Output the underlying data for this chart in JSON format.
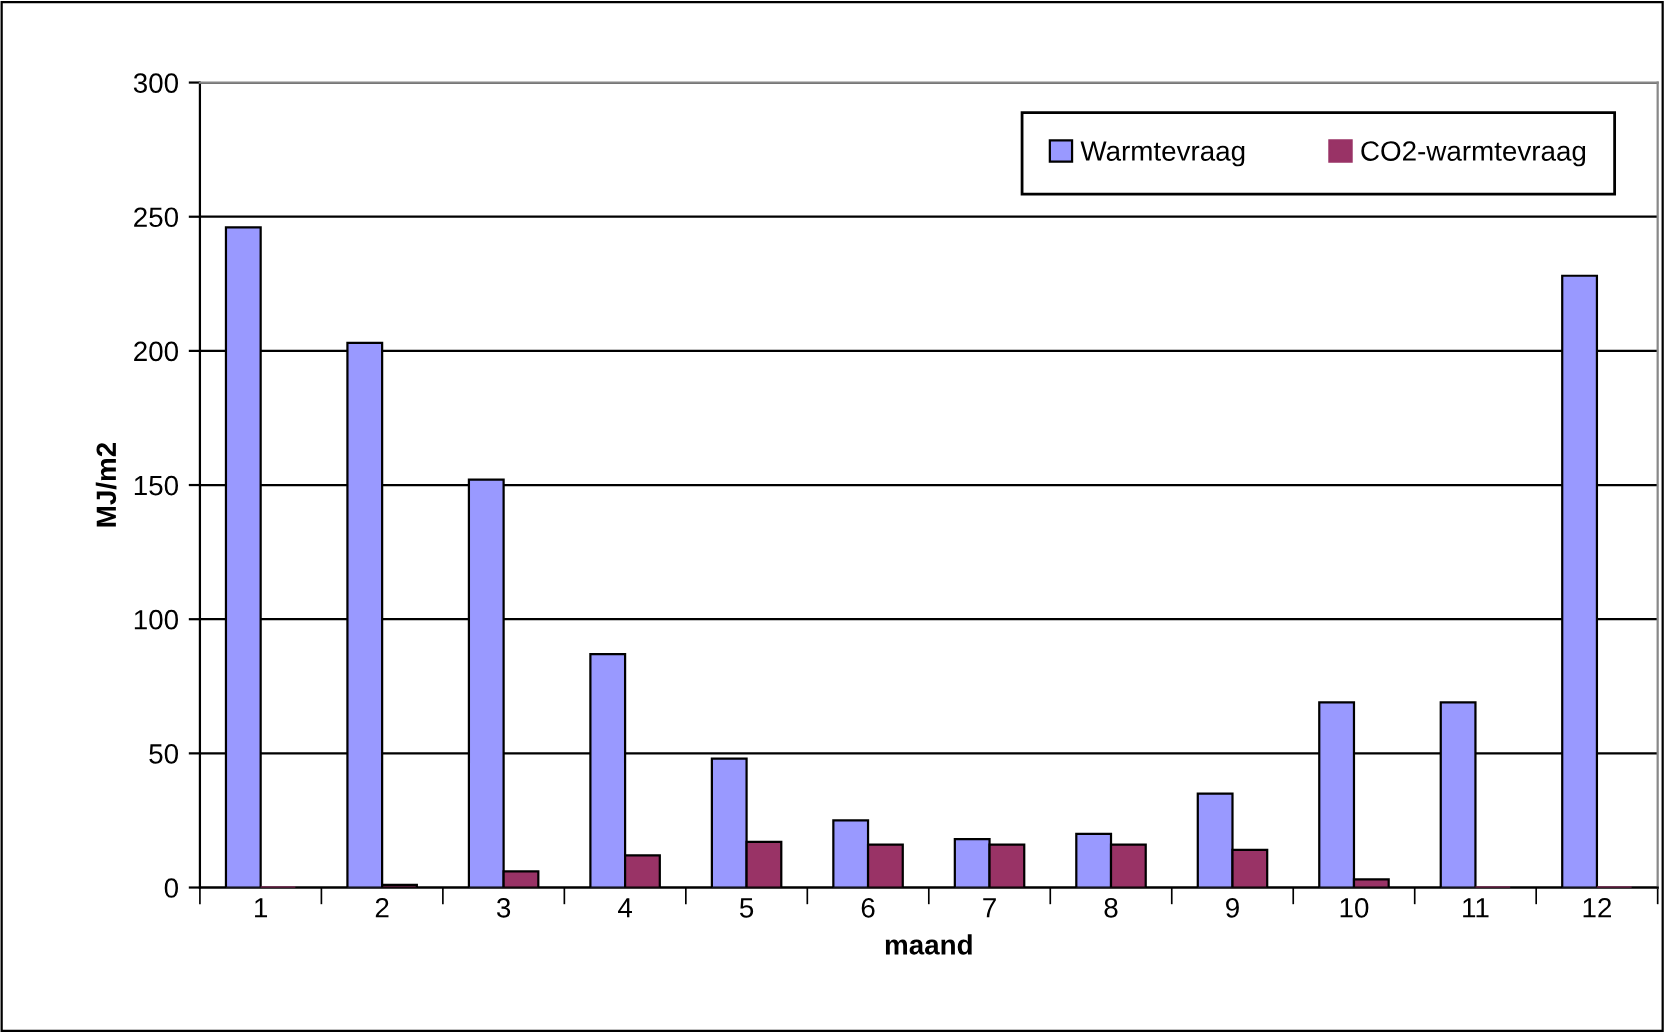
{
  "chart_data": {
    "type": "bar",
    "xlabel": "maand",
    "ylabel": "MJ/m2",
    "categories": [
      "1",
      "2",
      "3",
      "4",
      "5",
      "6",
      "7",
      "8",
      "9",
      "10",
      "11",
      "12"
    ],
    "series": [
      {
        "name": "Warmtevraag",
        "color": "#9999ff",
        "values": [
          246,
          203,
          152,
          87,
          48,
          25,
          18,
          20,
          35,
          69,
          69,
          228
        ]
      },
      {
        "name": "CO2-warmtevraag",
        "color": "#993366",
        "values": [
          0,
          1,
          6,
          12,
          17,
          16,
          16,
          16,
          14,
          3,
          0,
          0
        ]
      }
    ],
    "ylim": [
      0,
      300
    ],
    "yticks": [
      0,
      50,
      100,
      150,
      200,
      250,
      300
    ],
    "grid": "y",
    "legend": "top right"
  }
}
